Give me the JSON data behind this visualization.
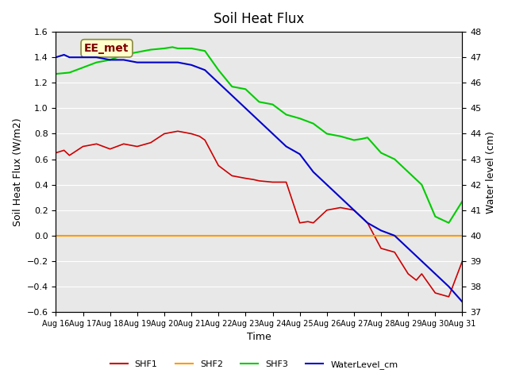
{
  "title": "Soil Heat Flux",
  "xlabel": "Time",
  "ylabel_left": "Soil Heat Flux (W/m2)",
  "ylabel_right": "Water level (cm)",
  "ylim_left": [
    -0.6,
    1.6
  ],
  "ylim_right": [
    37.0,
    48.0
  ],
  "yticks_left": [
    -0.6,
    -0.4,
    -0.2,
    0.0,
    0.2,
    0.4,
    0.6,
    0.8,
    1.0,
    1.2,
    1.4,
    1.6
  ],
  "yticks_right": [
    37.0,
    38.0,
    39.0,
    40.0,
    41.0,
    42.0,
    43.0,
    44.0,
    45.0,
    46.0,
    47.0,
    48.0
  ],
  "background_color": "#e8e8e8",
  "colors": {
    "SHF1": "#cc0000",
    "SHF2": "#ff9900",
    "SHF3": "#00cc00",
    "WaterLevel_cm": "#0000cc"
  },
  "annotation_text": "EE_met",
  "annotation_box_color": "#ffffcc",
  "annotation_text_color": "#800000",
  "xtick_labels": [
    "Aug 16",
    "Aug 17",
    "Aug 18",
    "Aug 19",
    "Aug 20",
    "Aug 21",
    "Aug 22",
    "Aug 23",
    "Aug 24",
    "Aug 25",
    "Aug 26",
    "Aug 27",
    "Aug 28",
    "Aug 29",
    "Aug 30",
    "Aug 31"
  ],
  "shf1_x": [
    0,
    0.3,
    0.5,
    1,
    1.5,
    2,
    2.5,
    3,
    3.5,
    4,
    4.5,
    5,
    5.3,
    5.5,
    6,
    6.5,
    7,
    7.3,
    7.5,
    8,
    8.5,
    9,
    9.3,
    9.5,
    10,
    10.5,
    11,
    11.5,
    12,
    12.5,
    13,
    13.3,
    13.5,
    14,
    14.5,
    15
  ],
  "shf1_y": [
    0.65,
    0.67,
    0.63,
    0.7,
    0.72,
    0.68,
    0.72,
    0.7,
    0.73,
    0.8,
    0.82,
    0.8,
    0.78,
    0.75,
    0.55,
    0.47,
    0.45,
    0.44,
    0.43,
    0.42,
    0.42,
    0.1,
    0.11,
    0.1,
    0.2,
    0.22,
    0.2,
    0.1,
    -0.1,
    -0.13,
    -0.3,
    -0.35,
    -0.3,
    -0.45,
    -0.48,
    -0.2
  ],
  "shf3_x": [
    0,
    0.5,
    1,
    1.5,
    2,
    2.5,
    3,
    3.5,
    4,
    4.3,
    4.5,
    5,
    5.5,
    6,
    6.5,
    7,
    7.5,
    8,
    8.5,
    9,
    9.5,
    10,
    10.5,
    11,
    11.3,
    11.5,
    12,
    12.5,
    13,
    13.5,
    14,
    14.5,
    15
  ],
  "shf3_y": [
    1.27,
    1.28,
    1.32,
    1.36,
    1.38,
    1.42,
    1.44,
    1.46,
    1.47,
    1.48,
    1.47,
    1.47,
    1.45,
    1.3,
    1.17,
    1.15,
    1.05,
    1.03,
    0.95,
    0.92,
    0.88,
    0.8,
    0.78,
    0.75,
    0.76,
    0.77,
    0.65,
    0.6,
    0.5,
    0.4,
    0.15,
    0.1,
    0.27
  ],
  "wl_x": [
    0,
    0.3,
    0.5,
    1,
    1.3,
    1.5,
    2,
    2.5,
    3,
    3.5,
    4,
    4.5,
    5,
    5.5,
    6,
    6.5,
    7,
    7.5,
    8,
    8.5,
    9,
    9.5,
    10,
    10.5,
    11,
    11.5,
    12,
    12.5,
    13,
    13.5,
    14,
    14.5,
    15
  ],
  "wl_y": [
    47.0,
    47.1,
    47.0,
    47.0,
    47.0,
    47.0,
    46.9,
    46.9,
    46.8,
    46.8,
    46.8,
    46.8,
    46.7,
    46.5,
    46.0,
    45.5,
    45.0,
    44.5,
    44.0,
    43.5,
    43.2,
    42.5,
    42.0,
    41.5,
    41.0,
    40.5,
    40.2,
    40.0,
    39.5,
    39.0,
    38.5,
    38.0,
    37.4
  ]
}
